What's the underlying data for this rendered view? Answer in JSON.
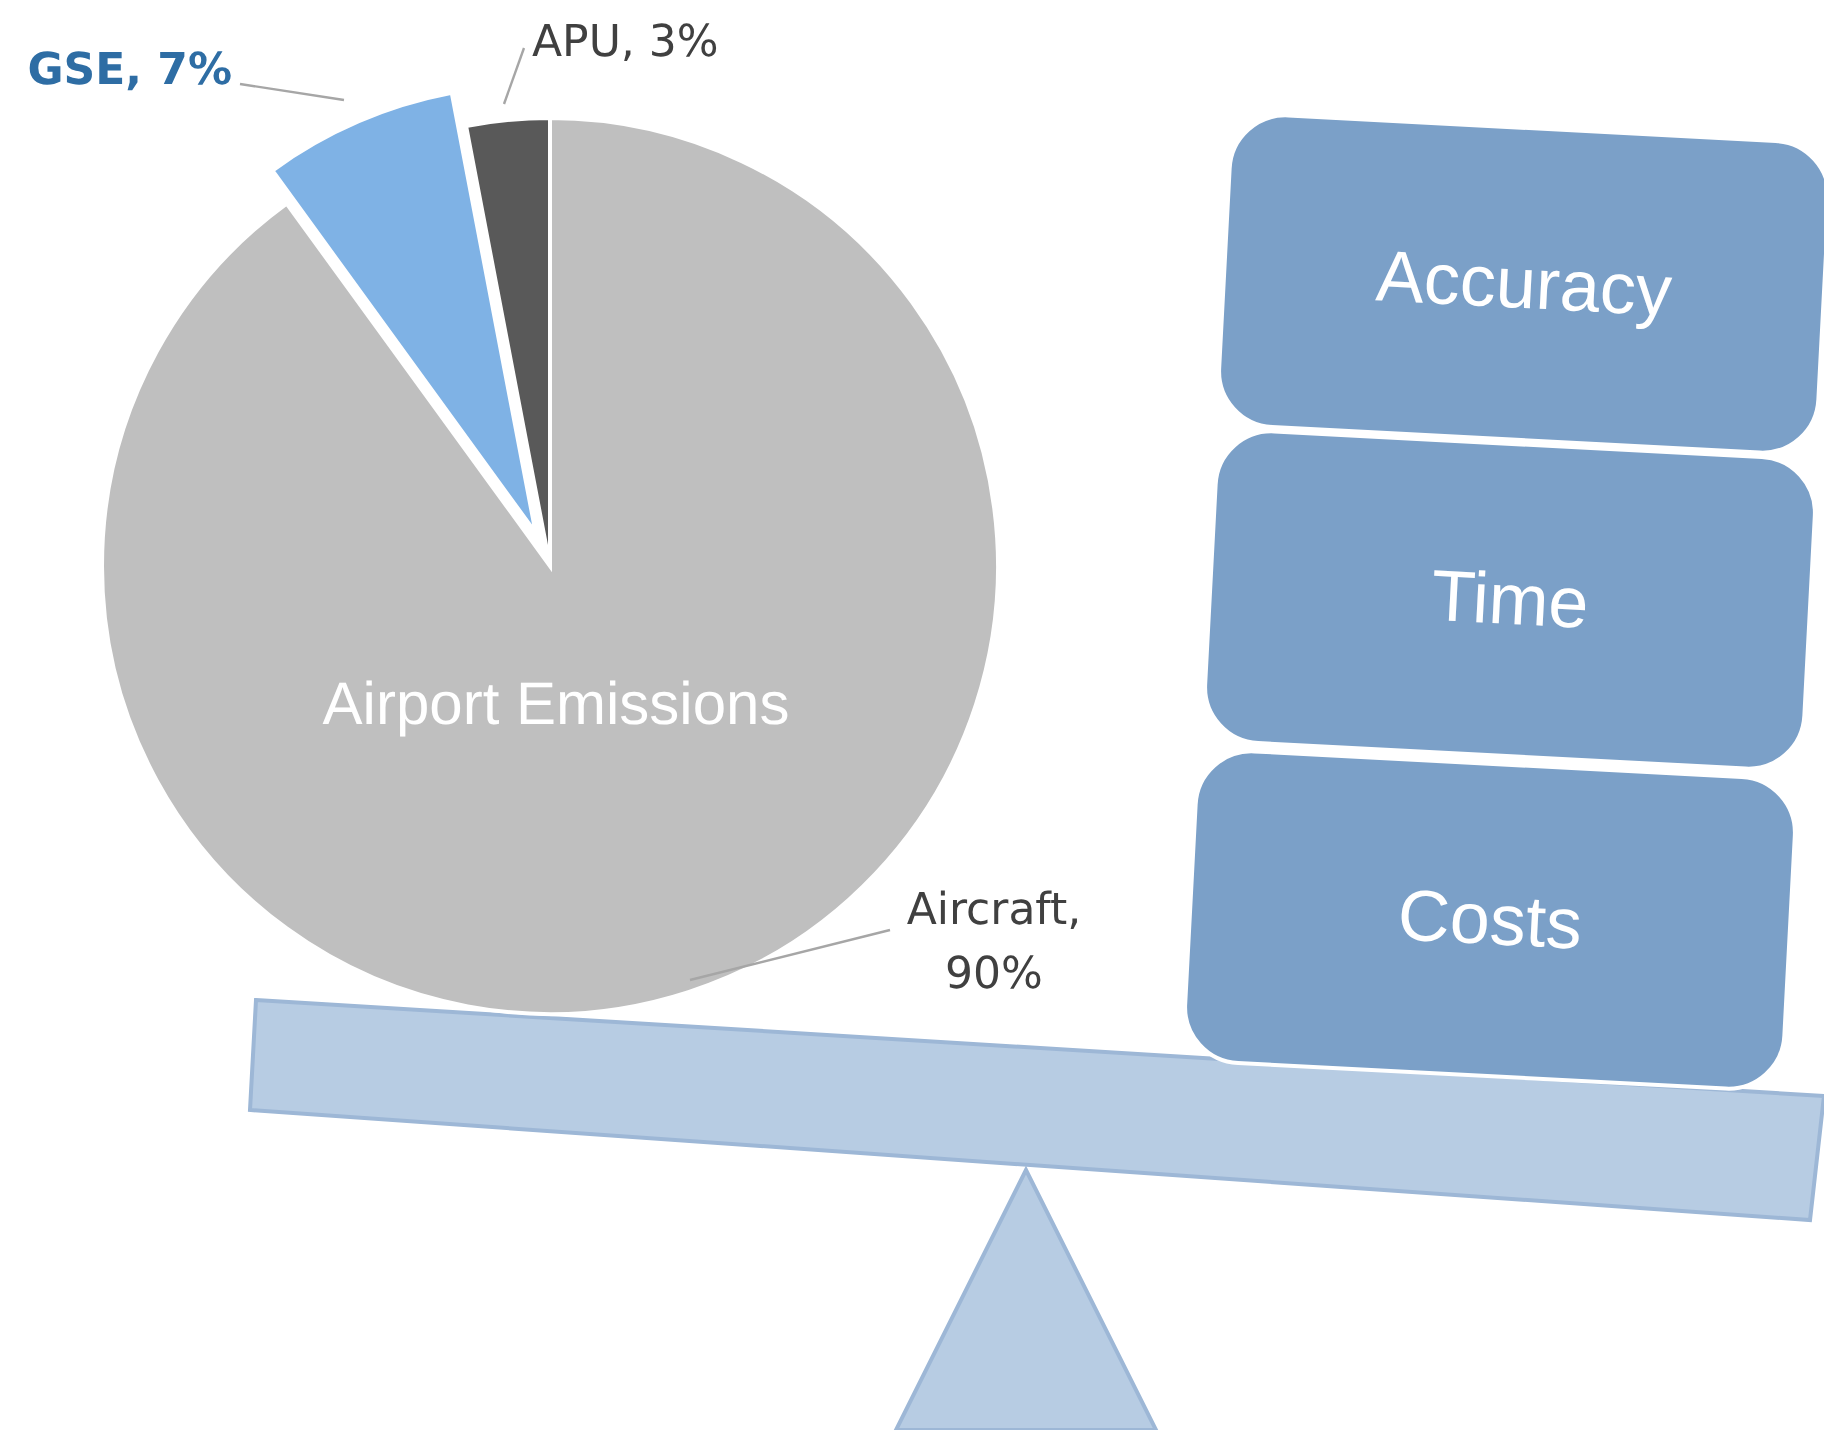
{
  "chart_data": {
    "type": "pie",
    "title": "Airport Emissions",
    "categories": [
      "Aircraft",
      "GSE",
      "APU"
    ],
    "values": [
      90,
      7,
      3
    ],
    "colors": [
      "#bfbfbf",
      "#7fb2e5",
      "#595959"
    ],
    "value_labels": [
      ", 90%",
      ", 7%",
      ", 3%"
    ],
    "annotations": [
      "Accuracy",
      "Time",
      "Costs"
    ]
  }
}
